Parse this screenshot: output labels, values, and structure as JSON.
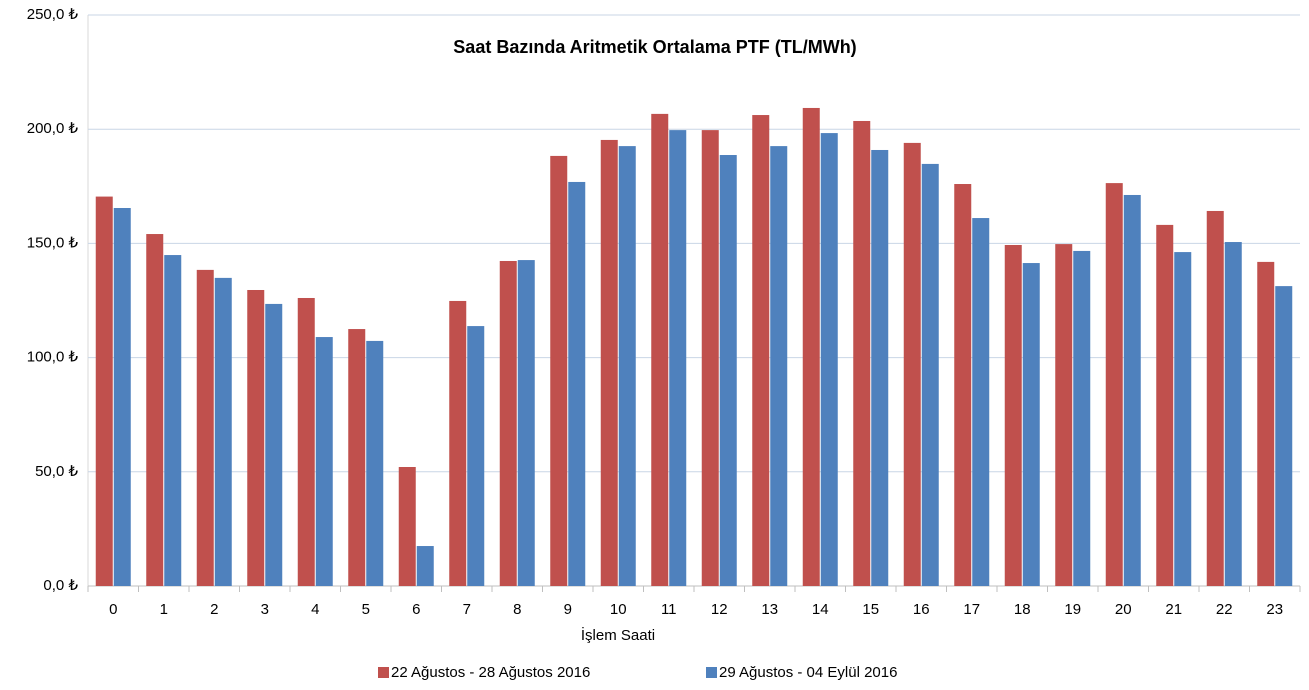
{
  "chart_data": {
    "type": "bar",
    "title": "Saat Bazında Aritmetik Ortalama PTF (TL/MWh)",
    "x_label": "İşlem Saati",
    "categories": [
      "0",
      "1",
      "2",
      "3",
      "4",
      "5",
      "6",
      "7",
      "8",
      "9",
      "10",
      "11",
      "12",
      "13",
      "14",
      "15",
      "16",
      "17",
      "18",
      "19",
      "20",
      "21",
      "22",
      "23"
    ],
    "series": [
      {
        "name": "22 Ağustos - 28 Ağustos 2016",
        "color": "#c0504d",
        "values": [
          170.5,
          154.1,
          138.4,
          129.6,
          126.1,
          112.5,
          52.1,
          124.8,
          142.3,
          188.3,
          195.3,
          206.7,
          199.6,
          206.2,
          209.3,
          203.6,
          194.0,
          176.0,
          149.3,
          149.7,
          176.4,
          158.1,
          164.2,
          141.9
        ]
      },
      {
        "name": "29 Ağustos - 04 Eylül 2016",
        "color": "#4f81bd",
        "values": [
          165.5,
          144.9,
          134.9,
          123.5,
          109.0,
          107.3,
          17.5,
          113.8,
          142.7,
          176.9,
          192.6,
          199.6,
          188.7,
          192.6,
          198.3,
          190.9,
          184.8,
          161.1,
          141.4,
          146.7,
          171.2,
          146.2,
          150.6,
          131.3
        ]
      }
    ],
    "ylim": [
      0,
      250
    ],
    "yticks": [
      {
        "value": 0,
        "label": "0,0 ₺"
      },
      {
        "value": 50,
        "label": "50,0 ₺"
      },
      {
        "value": 100,
        "label": "100,0 ₺"
      },
      {
        "value": 150,
        "label": "150,0 ₺"
      },
      {
        "value": 200,
        "label": "200,0 ₺"
      },
      {
        "value": 250,
        "label": "250,0 ₺"
      }
    ],
    "grid": true,
    "legend": "bottom"
  }
}
